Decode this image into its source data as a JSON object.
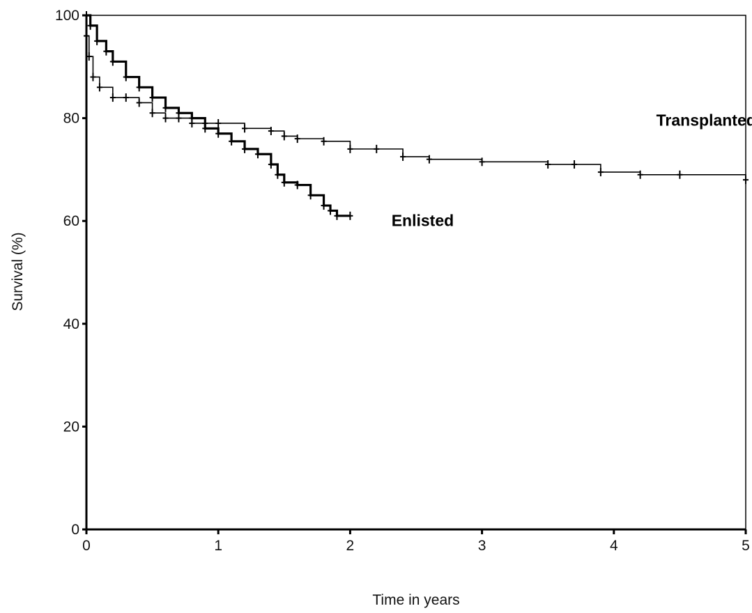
{
  "chart_data": {
    "type": "line",
    "title": "",
    "xlabel": "Time in years",
    "ylabel": "Survival (%)",
    "xlim": [
      0,
      5
    ],
    "ylim": [
      0,
      100
    ],
    "x_ticks": [
      "0",
      "1",
      "2",
      "3",
      "4",
      "5"
    ],
    "y_ticks": [
      "0",
      "20",
      "40",
      "60",
      "80",
      "100"
    ],
    "grid": false,
    "legend": "none",
    "series": [
      {
        "name": "Transplanted",
        "color": "#000000",
        "x": [
          0,
          0.02,
          0.05,
          0.1,
          0.2,
          0.3,
          0.4,
          0.5,
          0.6,
          0.7,
          0.8,
          0.9,
          1.0,
          1.2,
          1.4,
          1.5,
          1.6,
          1.8,
          2.0,
          2.2,
          2.4,
          2.6,
          3.0,
          3.5,
          3.7,
          3.9,
          4.2,
          4.5,
          5.0
        ],
        "y": [
          96,
          92,
          88,
          86,
          84,
          84,
          83,
          81,
          80,
          80,
          79,
          79,
          79,
          78,
          77.5,
          76.5,
          76,
          75.5,
          74,
          74,
          72.5,
          72,
          71.5,
          71,
          71,
          69.5,
          69,
          69,
          68
        ]
      },
      {
        "name": "Enlisted",
        "color": "#000000",
        "x": [
          0,
          0.03,
          0.08,
          0.15,
          0.2,
          0.3,
          0.4,
          0.5,
          0.6,
          0.7,
          0.8,
          0.9,
          1.0,
          1.1,
          1.2,
          1.3,
          1.4,
          1.45,
          1.5,
          1.6,
          1.7,
          1.8,
          1.85,
          1.9,
          2.0
        ],
        "y": [
          100,
          98,
          95,
          93,
          91,
          88,
          86,
          84,
          82,
          81,
          80,
          78,
          77,
          75.5,
          74,
          73,
          71,
          69,
          67.5,
          67,
          65,
          63,
          62,
          61,
          61
        ]
      }
    ],
    "annotations": [
      {
        "text": "Transplanted",
        "x": 4.7,
        "y": 78.5
      },
      {
        "text": "Enlisted",
        "x": 2.55,
        "y": 59
      }
    ]
  }
}
